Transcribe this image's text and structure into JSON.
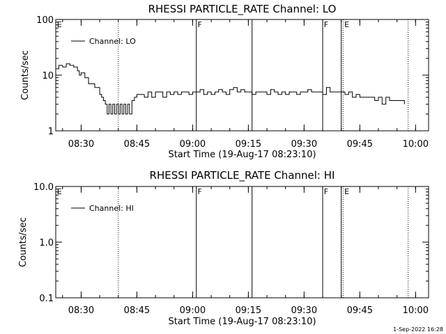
{
  "footer": {
    "timestamp": "1-Sep-2022 16:28"
  },
  "chart_data": [
    {
      "type": "line",
      "title": "RHESSI PARTICLE_RATE Channel: LO",
      "xlabel": "Start Time (19-Aug-17 08:23:10)",
      "ylabel": "Counts/sec",
      "yscale": "log",
      "ylim": [
        1,
        100
      ],
      "xlim": [
        "08:23:10",
        "10:03:30"
      ],
      "grid": false,
      "legend_position": "top-left",
      "y_ticks": [
        "1",
        "10",
        "100"
      ],
      "x_ticks": [
        "08:30",
        "08:45",
        "09:00",
        "09:15",
        "09:30",
        "09:45",
        "10:00"
      ],
      "series": [
        {
          "name": "Channel: LO",
          "color": "#000000",
          "x": [
            "08:23:10",
            "08:24:00",
            "08:25:00",
            "08:26:00",
            "08:27:00",
            "08:28:00",
            "08:29:00",
            "08:29:30",
            "08:30:00",
            "08:31:00",
            "08:32:00",
            "08:33:00",
            "08:33:40",
            "08:34:20",
            "08:35:00",
            "08:35:30",
            "08:36:00",
            "08:36:30",
            "08:37:00",
            "08:37:30",
            "08:38:00",
            "08:38:30",
            "08:39:00",
            "08:39:30",
            "08:40:00",
            "08:40:30",
            "08:41:00",
            "08:41:30",
            "08:42:00",
            "08:42:30",
            "08:43:00",
            "08:43:40",
            "08:44:20",
            "08:45:00",
            "08:46:00",
            "08:47:00",
            "08:48:00",
            "08:49:00",
            "08:50:00",
            "08:51:00",
            "08:52:00",
            "08:53:00",
            "08:54:00",
            "08:55:00",
            "08:56:00",
            "08:57:00",
            "08:58:00",
            "08:59:00",
            "09:00:00",
            "09:01:00",
            "09:02:00",
            "09:03:00",
            "09:04:00",
            "09:05:00",
            "09:06:00",
            "09:07:00",
            "09:08:00",
            "09:09:00",
            "09:10:00",
            "09:11:00",
            "09:12:00",
            "09:13:00",
            "09:14:00",
            "09:15:00",
            "09:16:00",
            "09:17:00",
            "09:18:00",
            "09:19:00",
            "09:20:00",
            "09:21:00",
            "09:22:00",
            "09:23:00",
            "09:24:00",
            "09:25:00",
            "09:26:00",
            "09:27:00",
            "09:28:00",
            "09:29:00",
            "09:30:00",
            "09:31:00",
            "09:32:00",
            "09:33:00",
            "09:34:00",
            "09:35:00",
            "09:36:00",
            "09:37:00",
            "09:38:00",
            "09:39:00",
            "09:40:00",
            "09:41:00",
            "09:42:00",
            "09:43:00",
            "09:44:00",
            "09:45:00",
            "09:46:00",
            "09:47:00",
            "09:48:00",
            "09:49:00",
            "09:50:00",
            "09:51:00",
            "09:52:00",
            "09:53:00",
            "09:54:00",
            "09:55:00",
            "09:56:00",
            "09:57:00"
          ],
          "y": [
            13,
            15,
            14,
            16,
            15,
            14,
            12,
            10,
            11,
            9,
            7,
            7,
            6,
            6,
            4.5,
            4,
            3.5,
            3,
            2,
            3,
            2,
            3,
            2,
            3,
            2,
            3,
            2,
            3,
            2,
            3,
            2,
            3.5,
            4,
            4.5,
            4.5,
            4,
            5,
            4,
            5,
            5,
            4,
            5,
            4.5,
            5,
            4.5,
            5,
            5,
            4.5,
            5,
            5,
            5.5,
            4.5,
            5,
            4.5,
            5,
            5.5,
            5,
            4.5,
            5.5,
            6,
            5,
            5.5,
            5,
            5,
            4.5,
            5,
            5,
            5,
            4.5,
            5.5,
            5,
            4.5,
            5,
            4.5,
            5,
            5,
            4.5,
            5,
            5,
            5.5,
            5,
            5,
            5,
            4.5,
            6,
            5,
            5,
            5,
            5,
            4.5,
            5,
            4,
            4.5,
            4,
            4,
            4,
            4,
            3.5,
            4,
            3,
            4,
            3.5,
            3.5,
            3.5,
            3.5,
            3
          ]
        }
      ],
      "annotations": [
        {
          "type": "dotted-vline",
          "x": "08:40:00"
        },
        {
          "type": "solid-vline",
          "x": "09:01:00"
        },
        {
          "type": "solid-vline",
          "x": "09:16:00"
        },
        {
          "type": "solid-vline",
          "x": "09:35:00"
        },
        {
          "type": "solid-vline",
          "x": "09:40:00"
        },
        {
          "type": "dotted-vline",
          "x": "09:40:30"
        },
        {
          "type": "dotted-vline",
          "x": "09:58:00"
        },
        {
          "type": "flag",
          "x": "08:23:30",
          "label": "E"
        },
        {
          "type": "flag",
          "x": "09:01:20",
          "label": "F"
        },
        {
          "type": "flag",
          "x": "09:35:20",
          "label": "F"
        },
        {
          "type": "flag",
          "x": "09:40:50",
          "label": "E"
        }
      ]
    },
    {
      "type": "line",
      "title": "RHESSI PARTICLE_RATE Channel: HI",
      "xlabel": "Start Time (19-Aug-17 08:23:10)",
      "ylabel": "Counts/sec",
      "yscale": "log",
      "ylim": [
        0.1,
        10
      ],
      "xlim": [
        "08:23:10",
        "10:03:30"
      ],
      "grid": false,
      "legend_position": "top-left",
      "y_ticks": [
        "0.1",
        "1.0",
        "10.0"
      ],
      "x_ticks": [
        "08:30",
        "08:45",
        "09:00",
        "09:15",
        "09:30",
        "09:45",
        "10:00"
      ],
      "series": [
        {
          "name": "Channel: HI",
          "color": "#000000",
          "x": [],
          "y": []
        }
      ],
      "annotations": [
        {
          "type": "dotted-vline",
          "x": "08:40:00"
        },
        {
          "type": "solid-vline",
          "x": "09:01:00"
        },
        {
          "type": "solid-vline",
          "x": "09:16:00"
        },
        {
          "type": "solid-vline",
          "x": "09:35:00"
        },
        {
          "type": "solid-vline",
          "x": "09:40:00"
        },
        {
          "type": "dotted-vline",
          "x": "09:40:30"
        },
        {
          "type": "dotted-vline",
          "x": "09:58:00"
        },
        {
          "type": "flag",
          "x": "08:23:30",
          "label": "E"
        },
        {
          "type": "flag",
          "x": "09:01:20",
          "label": "F"
        },
        {
          "type": "flag",
          "x": "09:35:20",
          "label": "F"
        },
        {
          "type": "flag",
          "x": "09:40:50",
          "label": "E"
        }
      ]
    }
  ]
}
